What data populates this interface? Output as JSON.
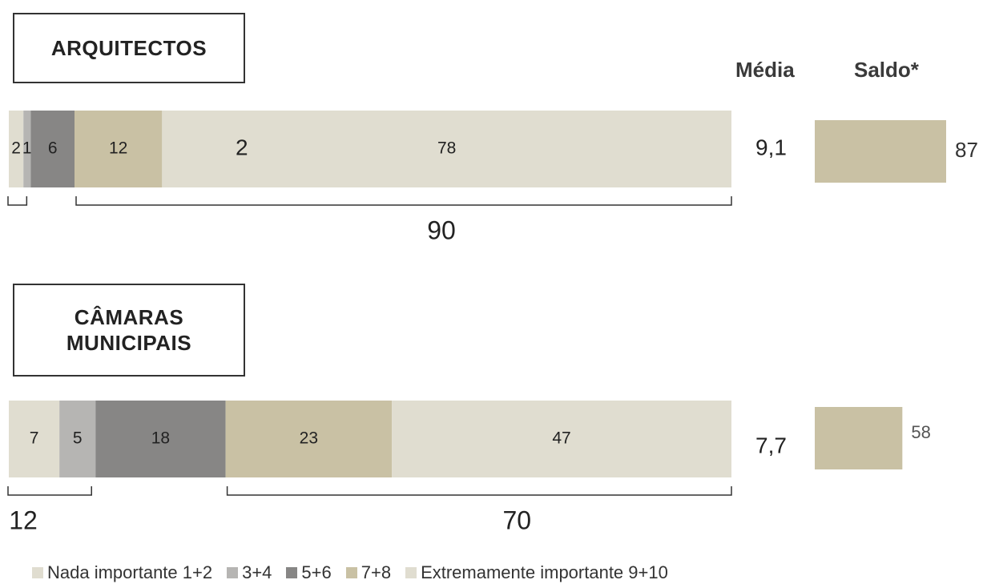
{
  "chart_data": {
    "type": "stacked-bar",
    "col_headers": {
      "media": "Média",
      "saldo": "Saldo*"
    },
    "legend_items": [
      {
        "label": "Nada importante 1+2",
        "color": "#e0ddd0"
      },
      {
        "label": "3+4",
        "color": "#b6b5b3"
      },
      {
        "label": "5+6",
        "color": "#878685"
      },
      {
        "label": "7+8",
        "color": "#c9c1a4"
      },
      {
        "label": "Extremamente importante 9+10",
        "color": "#e0ddd0"
      }
    ],
    "groups": [
      {
        "title": "ARQUITECTOS",
        "segments": [
          {
            "value": 2,
            "label": "2",
            "color": "#e0ddd0"
          },
          {
            "value": 1,
            "label": "1",
            "color": "#b6b5b3"
          },
          {
            "value": 6,
            "label": "6",
            "color": "#878685"
          },
          {
            "value": 12,
            "label": "12",
            "color": "#c9c1a4"
          },
          {
            "value": 78,
            "label": "78",
            "color": "#e0ddd0"
          }
        ],
        "stray_label": "2",
        "low_total": "",
        "high_total": "90",
        "media": "9,1",
        "saldo": 87,
        "saldo_label": "87"
      },
      {
        "title": "CÂMARAS MUNICIPAIS",
        "segments": [
          {
            "value": 7,
            "label": "7",
            "color": "#e0ddd0"
          },
          {
            "value": 5,
            "label": "5",
            "color": "#b6b5b3"
          },
          {
            "value": 18,
            "label": "18",
            "color": "#878685"
          },
          {
            "value": 23,
            "label": "23",
            "color": "#c9c1a4"
          },
          {
            "value": 47,
            "label": "47",
            "color": "#e0ddd0"
          }
        ],
        "stray_label": "",
        "low_total": "12",
        "high_total": "70",
        "media": "7,7",
        "saldo": 58,
        "saldo_label": "58"
      }
    ]
  }
}
